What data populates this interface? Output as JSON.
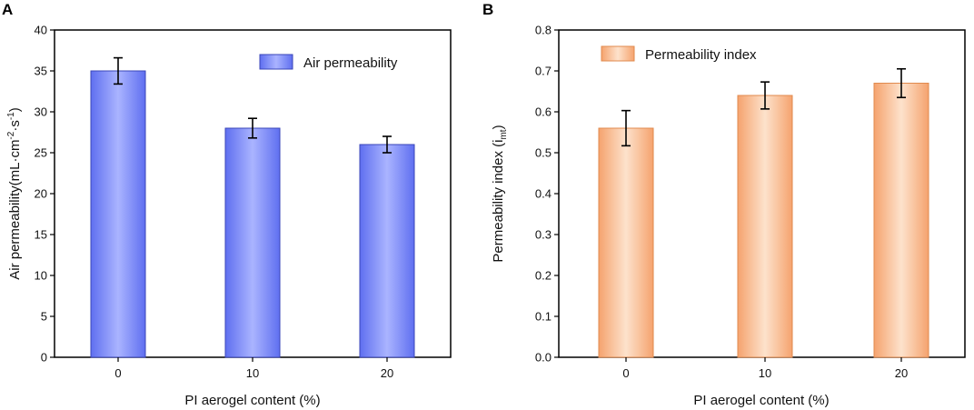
{
  "chart_data": [
    {
      "type": "bar",
      "panel_label": "A",
      "title": "",
      "categories": [
        "0",
        "10",
        "20"
      ],
      "values": [
        35,
        28,
        26
      ],
      "errors": [
        1.6,
        1.2,
        1.0
      ],
      "xlabel": "PI aerogel content (%)",
      "ylabel_main": "Air permeability(mL·cm",
      "ylabel_sup1": "-2",
      "ylabel_mid": "·s",
      "ylabel_sup2": "-1",
      "ylabel_end": ")",
      "ylim": [
        0,
        40
      ],
      "yticks": [
        "0",
        "5",
        "10",
        "15",
        "20",
        "25",
        "30",
        "35",
        "40"
      ],
      "legend": "Air permeability",
      "legend_position": "top-right",
      "colors": {
        "bar_light": "#aab4ff",
        "bar_dark": "#5f6ff0",
        "edge": "#3a46b8"
      }
    },
    {
      "type": "bar",
      "panel_label": "B",
      "title": "",
      "categories": [
        "0",
        "10",
        "20"
      ],
      "values": [
        0.56,
        0.64,
        0.67
      ],
      "errors": [
        0.043,
        0.033,
        0.035
      ],
      "xlabel": "PI aerogel content (%)",
      "ylabel_main": "Permeability index (i",
      "ylabel_sub": "mt",
      "ylabel_end": ")",
      "ylim": [
        0,
        0.8
      ],
      "yticks": [
        "0.0",
        "0.1",
        "0.2",
        "0.3",
        "0.4",
        "0.5",
        "0.6",
        "0.7",
        "0.8"
      ],
      "legend": "Permeability index",
      "legend_position": "top-left",
      "colors": {
        "bar_light": "#fde2cc",
        "bar_dark": "#f5a36e",
        "edge": "#e08a4e"
      }
    }
  ]
}
